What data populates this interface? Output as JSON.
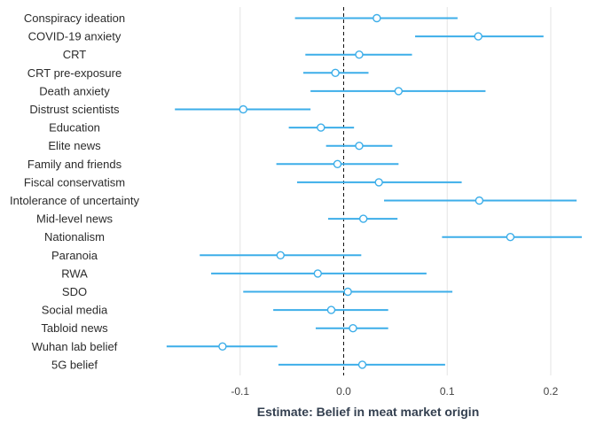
{
  "chart_data": {
    "type": "scatter",
    "subtype": "coefficient-plot",
    "title": "",
    "xlabel": "Estimate: Belief in meat market origin",
    "ylabel": "",
    "xlim": [
      -0.2,
      0.23
    ],
    "xticks": [
      -0.1,
      0.0,
      0.1,
      0.2
    ],
    "xtick_labels": [
      "-0.1",
      "0.0",
      "0.1",
      "0.2"
    ],
    "reference_line": {
      "x": 0.0,
      "style": "dashed"
    },
    "grid": "vertical-major",
    "legend": "none",
    "categories": [
      "Conspiracy ideation",
      "COVID-19 anxiety",
      "CRT",
      "CRT pre-exposure",
      "Death anxiety",
      "Distrust scientists",
      "Education",
      "Elite news",
      "Family and friends",
      "Fiscal conservatism",
      "Intolerance of uncertainty",
      "Mid-level news",
      "Nationalism",
      "Paranoia",
      "RWA",
      "SDO",
      "Social media",
      "Tabloid news",
      "Wuhan lab belief",
      "5G belief"
    ],
    "estimates": [
      0.032,
      0.13,
      0.015,
      -0.008,
      0.053,
      -0.097,
      -0.022,
      0.015,
      -0.006,
      0.034,
      0.131,
      0.019,
      0.161,
      -0.061,
      -0.025,
      0.004,
      -0.012,
      0.009,
      -0.117,
      0.018
    ],
    "lower": [
      -0.047,
      0.069,
      -0.037,
      -0.039,
      -0.032,
      -0.163,
      -0.053,
      -0.017,
      -0.065,
      -0.045,
      0.039,
      -0.015,
      0.095,
      -0.139,
      -0.128,
      -0.097,
      -0.068,
      -0.027,
      -0.171,
      -0.063
    ],
    "upper": [
      0.11,
      0.193,
      0.066,
      0.024,
      0.137,
      -0.032,
      0.01,
      0.047,
      0.053,
      0.114,
      0.225,
      0.052,
      0.23,
      0.017,
      0.08,
      0.105,
      0.043,
      0.043,
      -0.064,
      0.098
    ]
  },
  "colors": {
    "interval": "#3daee9",
    "point_fill": "#ffffff",
    "point_stroke": "#3daee9",
    "gridline": "#e4e4e4",
    "reference_line": "#111111"
  }
}
